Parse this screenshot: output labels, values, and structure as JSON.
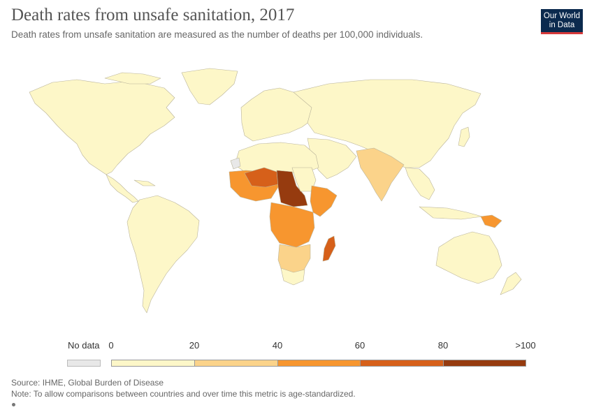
{
  "header": {
    "title": "Death rates from unsafe sanitation, 2017",
    "subtitle": "Death rates from unsafe sanitation are measured as the number of deaths per 100,000 individuals."
  },
  "logo": {
    "line1": "Our World",
    "line2": "in Data"
  },
  "legend": {
    "no_data_label": "No data",
    "no_data_color": "#e8e8e8",
    "ticks": [
      "0",
      "20",
      "40",
      "60",
      "80",
      ">100"
    ],
    "bins": [
      {
        "range": "0-20",
        "color": "#fdf7c8"
      },
      {
        "range": "20-40",
        "color": "#fbd38a"
      },
      {
        "range": "40-60",
        "color": "#f7962f"
      },
      {
        "range": "60-80",
        "color": "#d6601a"
      },
      {
        "range": "80-100",
        "color": "#963b0f"
      }
    ]
  },
  "map_colors": {
    "ocean": "#ffffff",
    "low": "#fdf7c8",
    "border": "#b9b39a"
  },
  "footer": {
    "source": "Source: IHME, Global Burden of Disease",
    "note": "Note: To allow comparisons between countries and over time this metric is age-standardized."
  }
}
